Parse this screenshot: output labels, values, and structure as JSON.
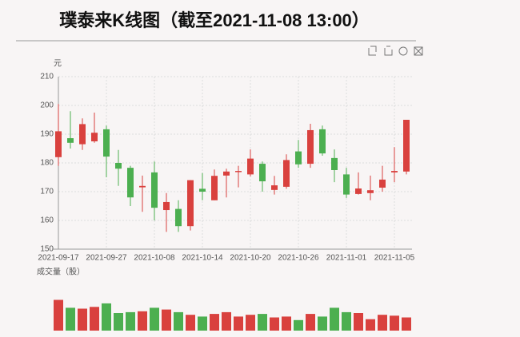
{
  "chart_data": {
    "type": "candlestick",
    "title": "璞泰来K线图（截至2021-11-08 13:00）",
    "y_label": "元",
    "volume_label": "成交量（股）",
    "categories": [
      "2021-09-17",
      null,
      null,
      null,
      "2021-09-27",
      null,
      null,
      null,
      "2021-10-08",
      null,
      null,
      null,
      "2021-10-14",
      null,
      null,
      null,
      "2021-10-20",
      null,
      null,
      null,
      "2021-10-26",
      null,
      null,
      null,
      "2021-11-01",
      null,
      null,
      null,
      "2021-11-05",
      null
    ],
    "open": [
      182,
      188.6,
      186.5,
      187.5,
      191.7,
      180,
      178.3,
      171.5,
      176.7,
      163.6,
      164,
      158,
      171,
      167,
      175.6,
      176.8,
      176,
      179.7,
      170.6,
      171.7,
      184,
      179.7,
      191.7,
      181.7,
      176,
      169.2,
      169.5,
      171.4,
      176.7,
      177
    ],
    "close": [
      191,
      187,
      193.5,
      190.5,
      182.2,
      178,
      168,
      172,
      164.4,
      166.4,
      158,
      174,
      170,
      175.5,
      177,
      177.2,
      181.5,
      173.6,
      172.2,
      181,
      179.5,
      191.4,
      183.3,
      177.5,
      169,
      171.1,
      170.5,
      174.2,
      177.2,
      195
    ],
    "high": [
      200.5,
      198,
      195.5,
      197.5,
      193,
      184.5,
      179,
      175.6,
      180.5,
      169.5,
      167,
      174,
      176.5,
      177.7,
      178,
      179,
      184.7,
      180.5,
      175.5,
      183,
      188,
      193.6,
      193,
      184.7,
      178.3,
      176.7,
      175.6,
      179,
      185.5,
      195
    ],
    "low": [
      179,
      185,
      184.5,
      187,
      175,
      172,
      165,
      163,
      160,
      156,
      156,
      156.5,
      167,
      167,
      168,
      171.5,
      175.3,
      170,
      169,
      171,
      178.3,
      178.3,
      182.5,
      173.3,
      167.8,
      169,
      167,
      170,
      173.3,
      176
    ],
    "up_color": "#d9413e",
    "down_color": "#4caf50",
    "ylim": [
      150,
      210
    ],
    "yticks": [
      150,
      160,
      170,
      180,
      190,
      200,
      210
    ],
    "grid": true,
    "volume": {
      "values": [
        35,
        26,
        25,
        27,
        31,
        20,
        21,
        22,
        26,
        24,
        21,
        18,
        16,
        19,
        21,
        16,
        18,
        19,
        15,
        16,
        12,
        19,
        16,
        26,
        21,
        20,
        13,
        18,
        17,
        15
      ],
      "ylim": [
        0,
        40
      ]
    }
  }
}
